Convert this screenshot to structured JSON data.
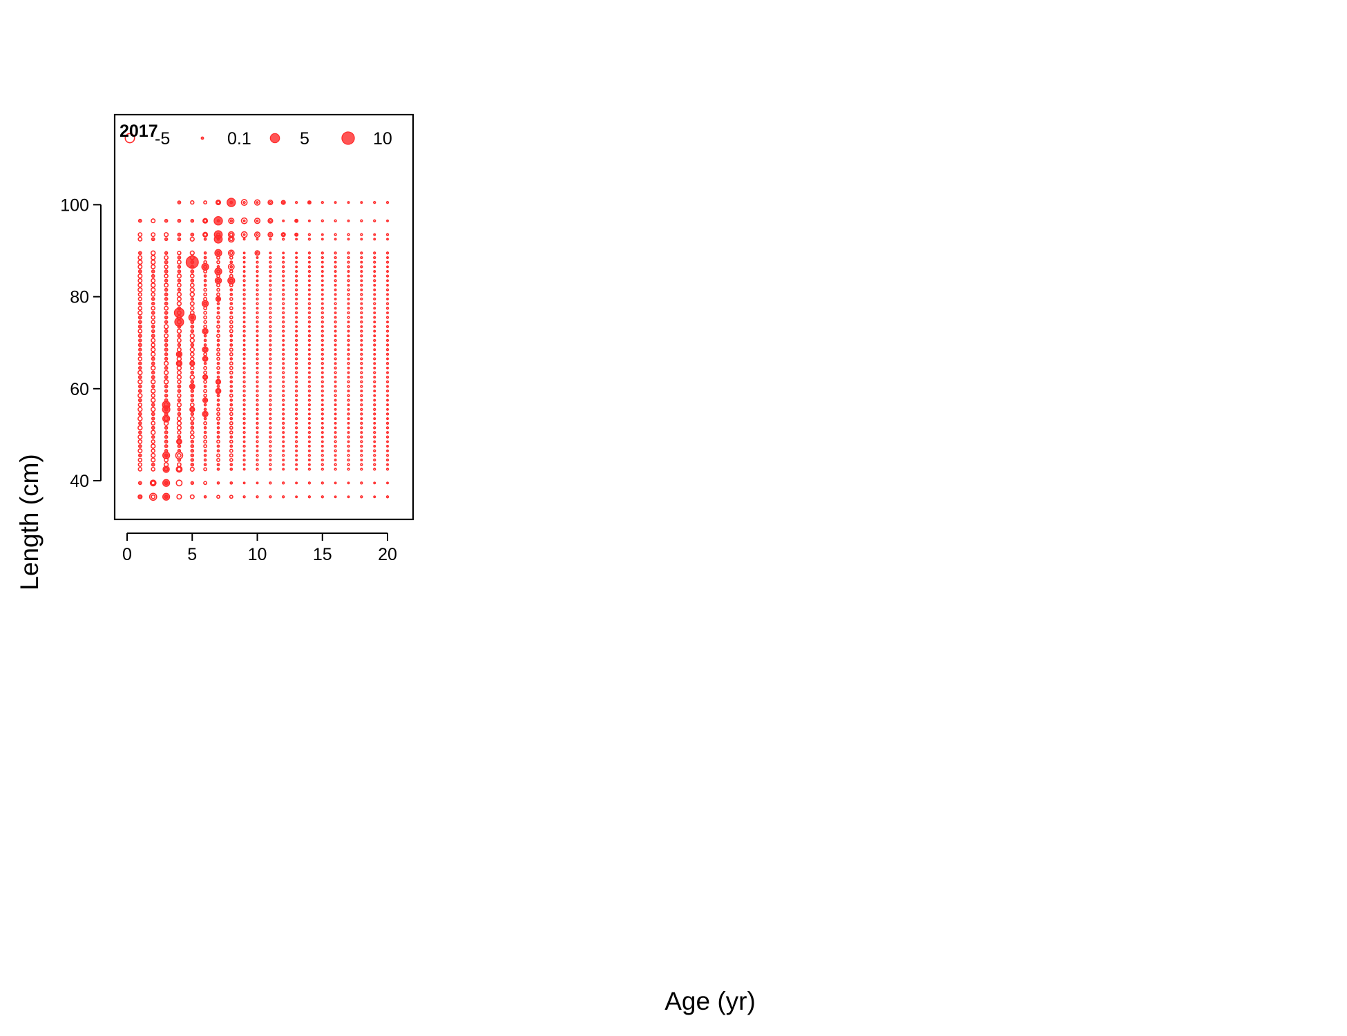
{
  "figure": {
    "xlabel": "Age (yr)",
    "ylabel": "Length (cm)"
  },
  "chart_data": {
    "type": "scatter",
    "subtype": "bubble-residuals",
    "panel_label": "2017",
    "xlim": [
      -1,
      22
    ],
    "ylim": [
      30,
      118
    ],
    "x_ticks": [
      0,
      5,
      10,
      15,
      20
    ],
    "y_ticks": [
      40,
      60,
      80,
      100
    ],
    "grid": false,
    "color": "#ff2a2a",
    "legend": {
      "placement": "top",
      "entries": [
        {
          "label": "-5",
          "value": -5
        },
        {
          "label": "0.1",
          "value": 0.1
        },
        {
          "label": "5",
          "value": 5
        },
        {
          "label": "10",
          "value": 10
        }
      ]
    },
    "notable_points": [
      {
        "age": 1,
        "length": 36.5,
        "value": -0.5
      },
      {
        "age": 2,
        "length": 36.5,
        "value": -2.5
      },
      {
        "age": 2,
        "length": 39.5,
        "value": -1.5
      },
      {
        "age": 3,
        "length": 36.5,
        "value": 2.5
      },
      {
        "age": 3,
        "length": 39.5,
        "value": 2.5
      },
      {
        "age": 3,
        "length": 42.5,
        "value": 2
      },
      {
        "age": 3,
        "length": 45.5,
        "value": 2.5
      },
      {
        "age": 3,
        "length": 53.5,
        "value": 2.5
      },
      {
        "age": 3,
        "length": 55.5,
        "value": 3
      },
      {
        "age": 3,
        "length": 56.5,
        "value": 3
      },
      {
        "age": 4,
        "length": 36.5,
        "value": -0.8
      },
      {
        "age": 4,
        "length": 39.5,
        "value": -1.5
      },
      {
        "age": 4,
        "length": 42.5,
        "value": -1.5
      },
      {
        "age": 4,
        "length": 45.5,
        "value": -2.5
      },
      {
        "age": 4,
        "length": 48.5,
        "value": 1.2
      },
      {
        "age": 4,
        "length": 65.5,
        "value": 1.5
      },
      {
        "age": 4,
        "length": 67.5,
        "value": 1.5
      },
      {
        "age": 4,
        "length": 74.5,
        "value": 4.5
      },
      {
        "age": 4,
        "length": 76.5,
        "value": 5.5
      },
      {
        "age": 5,
        "length": 55.5,
        "value": 1
      },
      {
        "age": 5,
        "length": 60.5,
        "value": 1.2
      },
      {
        "age": 5,
        "length": 65.5,
        "value": 1
      },
      {
        "age": 5,
        "length": 75.5,
        "value": 2.5
      },
      {
        "age": 5,
        "length": 87.5,
        "value": 9.5
      },
      {
        "age": 6,
        "length": 54.5,
        "value": 1.5
      },
      {
        "age": 6,
        "length": 57.5,
        "value": 1
      },
      {
        "age": 6,
        "length": 62.5,
        "value": 1
      },
      {
        "age": 6,
        "length": 66.5,
        "value": 1.2
      },
      {
        "age": 6,
        "length": 68.5,
        "value": 1.5
      },
      {
        "age": 6,
        "length": 72.5,
        "value": 1.5
      },
      {
        "age": 6,
        "length": 78.5,
        "value": 2
      },
      {
        "age": 6,
        "length": 86.5,
        "value": 2.5
      },
      {
        "age": 6,
        "length": 93.5,
        "value": -0.8
      },
      {
        "age": 6,
        "length": 96.5,
        "value": -0.8
      },
      {
        "age": 7,
        "length": 59.5,
        "value": 1.2
      },
      {
        "age": 7,
        "length": 61.5,
        "value": 1
      },
      {
        "age": 7,
        "length": 79.5,
        "value": 1
      },
      {
        "age": 7,
        "length": 83.5,
        "value": 2
      },
      {
        "age": 7,
        "length": 85.5,
        "value": 2.5
      },
      {
        "age": 7,
        "length": 89.5,
        "value": 2.5
      },
      {
        "age": 7,
        "length": 92.5,
        "value": 3.5
      },
      {
        "age": 7,
        "length": 93.5,
        "value": 3.5
      },
      {
        "age": 7,
        "length": 96.5,
        "value": 4
      },
      {
        "age": 7,
        "length": 100.5,
        "value": -0.8
      },
      {
        "age": 8,
        "length": 83.5,
        "value": 2.5
      },
      {
        "age": 8,
        "length": 86.5,
        "value": -1.5
      },
      {
        "age": 8,
        "length": 89.5,
        "value": -1.5
      },
      {
        "age": 8,
        "length": 92.5,
        "value": -1.5
      },
      {
        "age": 8,
        "length": 93.5,
        "value": -1.5
      },
      {
        "age": 8,
        "length": 96.5,
        "value": -1.2
      },
      {
        "age": 8,
        "length": 100.5,
        "value": 4
      },
      {
        "age": 9,
        "length": 93.5,
        "value": -1.5
      },
      {
        "age": 9,
        "length": 96.5,
        "value": -1.5
      },
      {
        "age": 9,
        "length": 100.5,
        "value": -1.5
      },
      {
        "age": 10,
        "length": 89.5,
        "value": -0.8
      },
      {
        "age": 10,
        "length": 93.5,
        "value": -1.2
      },
      {
        "age": 10,
        "length": 96.5,
        "value": -1.2
      },
      {
        "age": 10,
        "length": 100.5,
        "value": -1.2
      },
      {
        "age": 11,
        "length": 93.5,
        "value": -0.8
      },
      {
        "age": 11,
        "length": 96.5,
        "value": -0.8
      },
      {
        "age": 11,
        "length": 100.5,
        "value": -0.8
      },
      {
        "age": 12,
        "length": 93.5,
        "value": -0.5
      },
      {
        "age": 12,
        "length": 100.5,
        "value": -0.5
      },
      {
        "age": 13,
        "length": 93.5,
        "value": 0.3
      },
      {
        "age": 13,
        "length": 96.5,
        "value": 0.3
      },
      {
        "age": 14,
        "length": 100.5,
        "value": 0.3
      }
    ]
  }
}
